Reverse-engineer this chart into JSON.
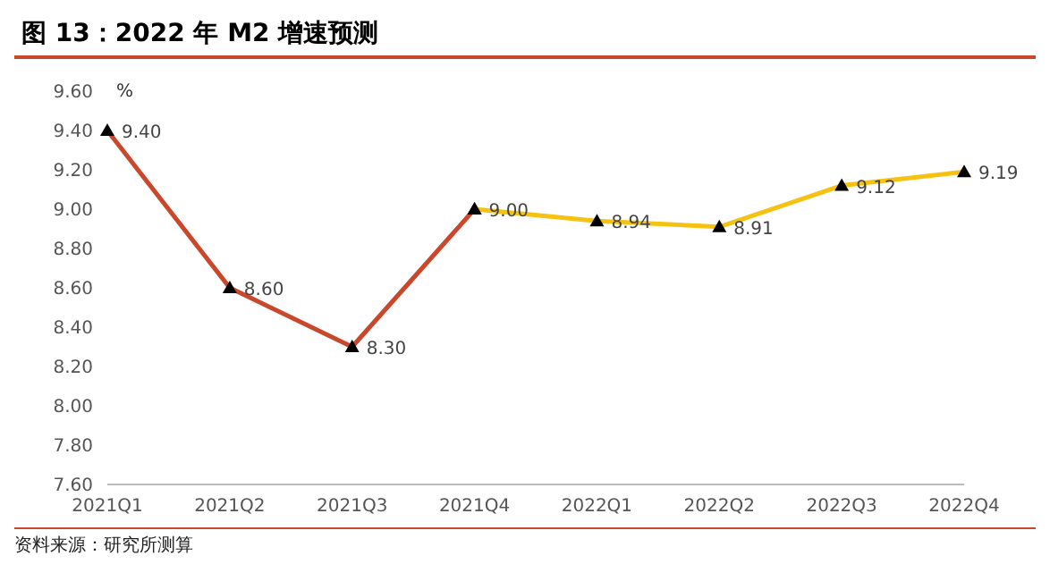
{
  "chart_data": {
    "type": "line",
    "title": "图 13：2022 年 M2 增速预测",
    "ylabel": "%",
    "annotations": [
      "资料来源：研究所测算"
    ],
    "categories": [
      "2021Q1",
      "2021Q2",
      "2021Q3",
      "2021Q4",
      "2022Q1",
      "2022Q2",
      "2022Q3",
      "2022Q4"
    ],
    "series": [
      {
        "color": "#c9472a",
        "values": [
          9.4,
          8.6,
          8.3,
          9.0,
          null,
          null,
          null,
          null
        ],
        "value_labels": [
          "9.40",
          "8.60",
          "8.30",
          null,
          null,
          null,
          null,
          null
        ]
      },
      {
        "color": "#f5c211",
        "values": [
          null,
          null,
          null,
          9.0,
          8.94,
          8.91,
          9.12,
          9.19
        ],
        "value_labels": [
          null,
          null,
          null,
          "9.00",
          "8.94",
          "8.91",
          "9.12",
          "9.19"
        ]
      }
    ],
    "ylim": [
      7.6,
      9.6
    ],
    "yticks": [
      {
        "value": 7.6,
        "label": "7.60"
      },
      {
        "value": 7.8,
        "label": "7.80"
      },
      {
        "value": 8.0,
        "label": "8.00"
      },
      {
        "value": 8.2,
        "label": "8.20"
      },
      {
        "value": 8.4,
        "label": "8.40"
      },
      {
        "value": 8.6,
        "label": "8.60"
      },
      {
        "value": 8.8,
        "label": "8.80"
      },
      {
        "value": 9.0,
        "label": "9.00"
      },
      {
        "value": 9.2,
        "label": "9.20"
      },
      {
        "value": 9.4,
        "label": "9.40"
      },
      {
        "value": 9.6,
        "label": "9.60"
      }
    ],
    "marker": "triangle",
    "line_style": "solid"
  }
}
